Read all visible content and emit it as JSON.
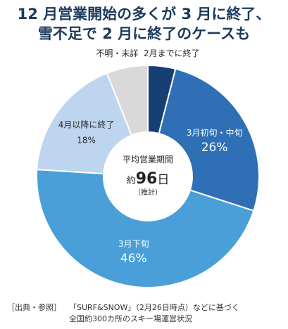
{
  "title": {
    "line1": "12 月営業開始の多くが 3 月に終了、",
    "line2": "雪不足で 2 月に終了のケースも"
  },
  "chart_data": {
    "type": "pie",
    "style": "donut",
    "categories": [
      "2月までに終了",
      "3月初旬・中旬",
      "3月下旬",
      "4月以降に終了",
      "不明・未詳"
    ],
    "values": [
      4,
      26,
      46,
      18,
      6
    ],
    "value_labels": [
      "",
      "26%",
      "46%",
      "18%",
      ""
    ],
    "colors": [
      "#173f73",
      "#2f6fb6",
      "#4a9fd9",
      "#bdd5ee",
      "#d9d9d9"
    ],
    "center": {
      "label": "平均営業期間",
      "value_prefix": "約",
      "value": "96",
      "value_suffix": "日",
      "note": "（推計）"
    }
  },
  "source": {
    "head": "［出典・参照］",
    "line1": "「SURF&SNOW」（2月26日時点）などに基づく",
    "line2": "全国約300カ所のスキー場運営状況"
  }
}
